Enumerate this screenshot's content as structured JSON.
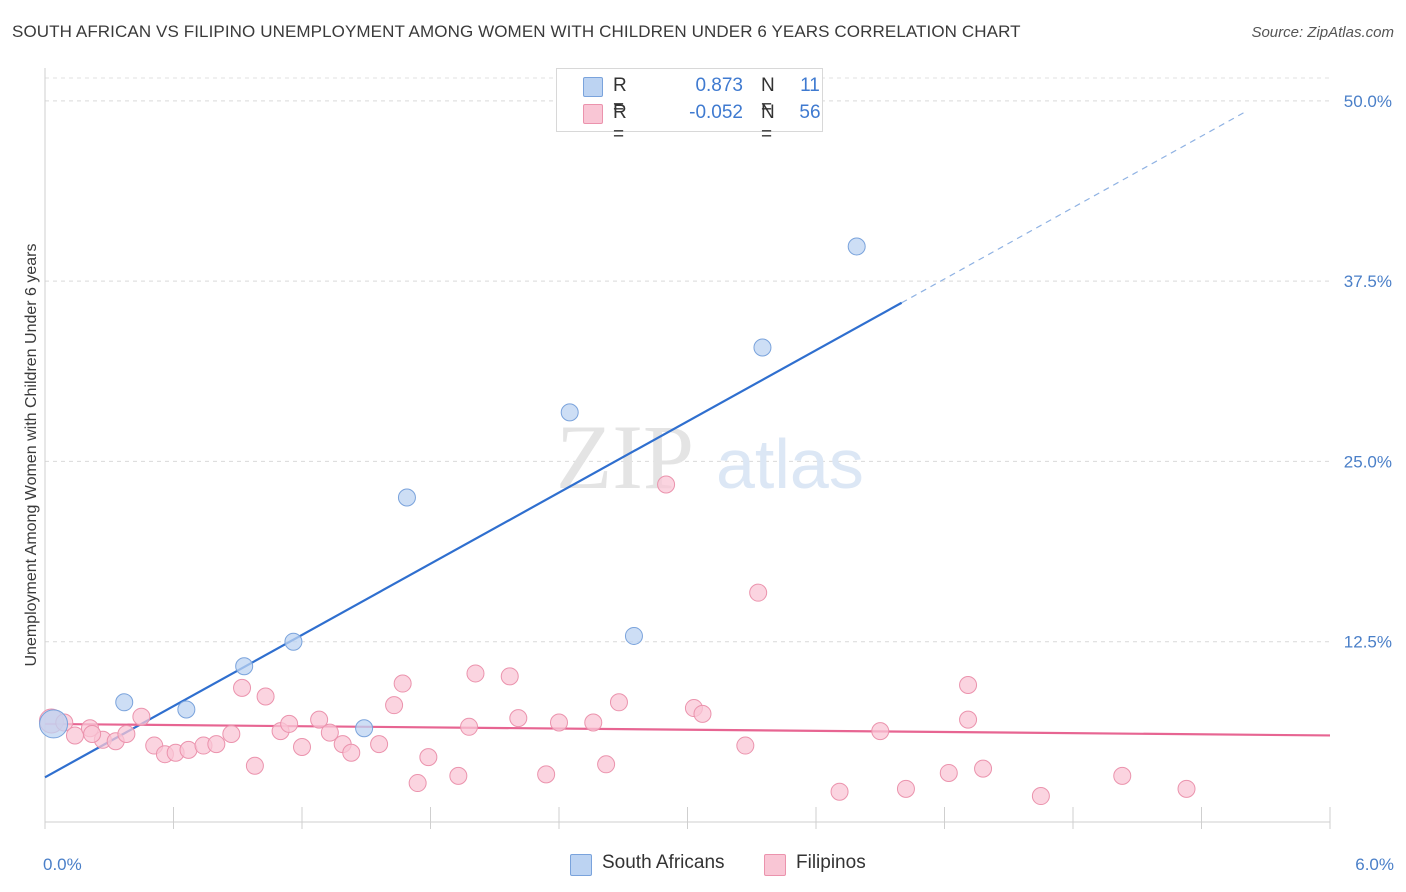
{
  "title": "SOUTH AFRICAN VS FILIPINO UNEMPLOYMENT AMONG WOMEN WITH CHILDREN UNDER 6 YEARS CORRELATION CHART",
  "source": "Source: ZipAtlas.com",
  "watermark": {
    "zip": "ZIP",
    "atlas": "atlas"
  },
  "legend_top": {
    "rows": [
      {
        "r_label": "R =",
        "r_value": "0.873",
        "n_label": "N =",
        "n_value": "11",
        "color": "#bcd3f2",
        "border": "#7aa3dc"
      },
      {
        "r_label": "R =",
        "r_value": "-0.052",
        "n_label": "N =",
        "n_value": "56",
        "color": "#f9c6d5",
        "border": "#eb93ad"
      }
    ]
  },
  "legend_bottom": [
    {
      "label": "South Africans",
      "color": "#bcd3f2",
      "border": "#7aa3dc"
    },
    {
      "label": "Filipinos",
      "color": "#f9c6d5",
      "border": "#eb93ad"
    }
  ],
  "chart_data": {
    "type": "scatter",
    "title": "SOUTH AFRICAN VS FILIPINO UNEMPLOYMENT AMONG WOMEN WITH CHILDREN UNDER 6 YEARS CORRELATION CHART",
    "xlabel": "",
    "ylabel": "Unemployment Among Women with Children Under 6 years",
    "xlim": [
      0,
      6.0
    ],
    "ylim": [
      0,
      52
    ],
    "x_tick_labels": [
      "0.0%",
      "6.0%"
    ],
    "y_ticks": [
      12.5,
      25.0,
      37.5,
      50.0
    ],
    "y_tick_labels": [
      "12.5%",
      "25.0%",
      "37.5%",
      "50.0%"
    ],
    "grid": "horizontal dashed",
    "series": [
      {
        "name": "South Africans",
        "color": "#7aa3dc",
        "fill": "#bcd3f2",
        "line_color": "#2f6fcf",
        "points": [
          {
            "x": 0.04,
            "y": 6.8
          },
          {
            "x": 0.37,
            "y": 8.3
          },
          {
            "x": 0.66,
            "y": 7.8
          },
          {
            "x": 0.93,
            "y": 10.8
          },
          {
            "x": 1.16,
            "y": 12.5
          },
          {
            "x": 1.49,
            "y": 6.5
          },
          {
            "x": 1.69,
            "y": 22.5
          },
          {
            "x": 2.45,
            "y": 28.4
          },
          {
            "x": 2.75,
            "y": 12.9
          },
          {
            "x": 3.35,
            "y": 32.9
          },
          {
            "x": 3.79,
            "y": 39.9
          }
        ],
        "trend": {
          "x0": 0.0,
          "y0": 3.1,
          "x1": 4.0,
          "y1": 36.0,
          "dash_to_x": 5.6,
          "dash_to_y": 49.2
        }
      },
      {
        "name": "Filipinos",
        "color": "#eb93ad",
        "fill": "#f9c6d5",
        "line_color": "#e76592",
        "points": [
          {
            "x": 0.03,
            "y": 7.0
          },
          {
            "x": 0.09,
            "y": 6.9
          },
          {
            "x": 0.14,
            "y": 6.0
          },
          {
            "x": 0.21,
            "y": 6.5
          },
          {
            "x": 0.27,
            "y": 5.7
          },
          {
            "x": 0.33,
            "y": 5.6
          },
          {
            "x": 0.38,
            "y": 6.1
          },
          {
            "x": 0.45,
            "y": 7.3
          },
          {
            "x": 0.51,
            "y": 5.3
          },
          {
            "x": 0.56,
            "y": 4.7
          },
          {
            "x": 0.61,
            "y": 4.8
          },
          {
            "x": 0.67,
            "y": 5.0
          },
          {
            "x": 0.74,
            "y": 5.3
          },
          {
            "x": 0.8,
            "y": 5.4
          },
          {
            "x": 0.87,
            "y": 6.1
          },
          {
            "x": 0.92,
            "y": 9.3
          },
          {
            "x": 0.98,
            "y": 3.9
          },
          {
            "x": 1.03,
            "y": 8.7
          },
          {
            "x": 1.1,
            "y": 6.3
          },
          {
            "x": 1.14,
            "y": 6.8
          },
          {
            "x": 1.2,
            "y": 5.2
          },
          {
            "x": 1.28,
            "y": 7.1
          },
          {
            "x": 1.33,
            "y": 6.2
          },
          {
            "x": 1.39,
            "y": 5.4
          },
          {
            "x": 1.43,
            "y": 4.8
          },
          {
            "x": 1.56,
            "y": 5.4
          },
          {
            "x": 1.63,
            "y": 8.1
          },
          {
            "x": 1.67,
            "y": 9.6
          },
          {
            "x": 1.74,
            "y": 2.7
          },
          {
            "x": 1.79,
            "y": 4.5
          },
          {
            "x": 1.93,
            "y": 3.2
          },
          {
            "x": 1.98,
            "y": 6.6
          },
          {
            "x": 2.01,
            "y": 10.3
          },
          {
            "x": 2.17,
            "y": 10.1
          },
          {
            "x": 2.21,
            "y": 7.2
          },
          {
            "x": 2.34,
            "y": 3.3
          },
          {
            "x": 2.4,
            "y": 6.9
          },
          {
            "x": 2.56,
            "y": 6.9
          },
          {
            "x": 2.62,
            "y": 4.0
          },
          {
            "x": 2.68,
            "y": 8.3
          },
          {
            "x": 2.9,
            "y": 23.4
          },
          {
            "x": 3.03,
            "y": 7.9
          },
          {
            "x": 3.07,
            "y": 7.5
          },
          {
            "x": 3.27,
            "y": 5.3
          },
          {
            "x": 3.33,
            "y": 15.9
          },
          {
            "x": 3.71,
            "y": 2.1
          },
          {
            "x": 3.9,
            "y": 6.3
          },
          {
            "x": 4.02,
            "y": 2.3
          },
          {
            "x": 4.22,
            "y": 3.4
          },
          {
            "x": 4.31,
            "y": 9.5
          },
          {
            "x": 4.31,
            "y": 7.1
          },
          {
            "x": 4.38,
            "y": 3.7
          },
          {
            "x": 4.65,
            "y": 1.8
          },
          {
            "x": 5.03,
            "y": 3.2
          },
          {
            "x": 5.33,
            "y": 2.3
          },
          {
            "x": 0.22,
            "y": 6.1
          }
        ],
        "trend": {
          "x0": 0.0,
          "y0": 6.8,
          "x1": 6.0,
          "y1": 6.0
        }
      }
    ]
  }
}
